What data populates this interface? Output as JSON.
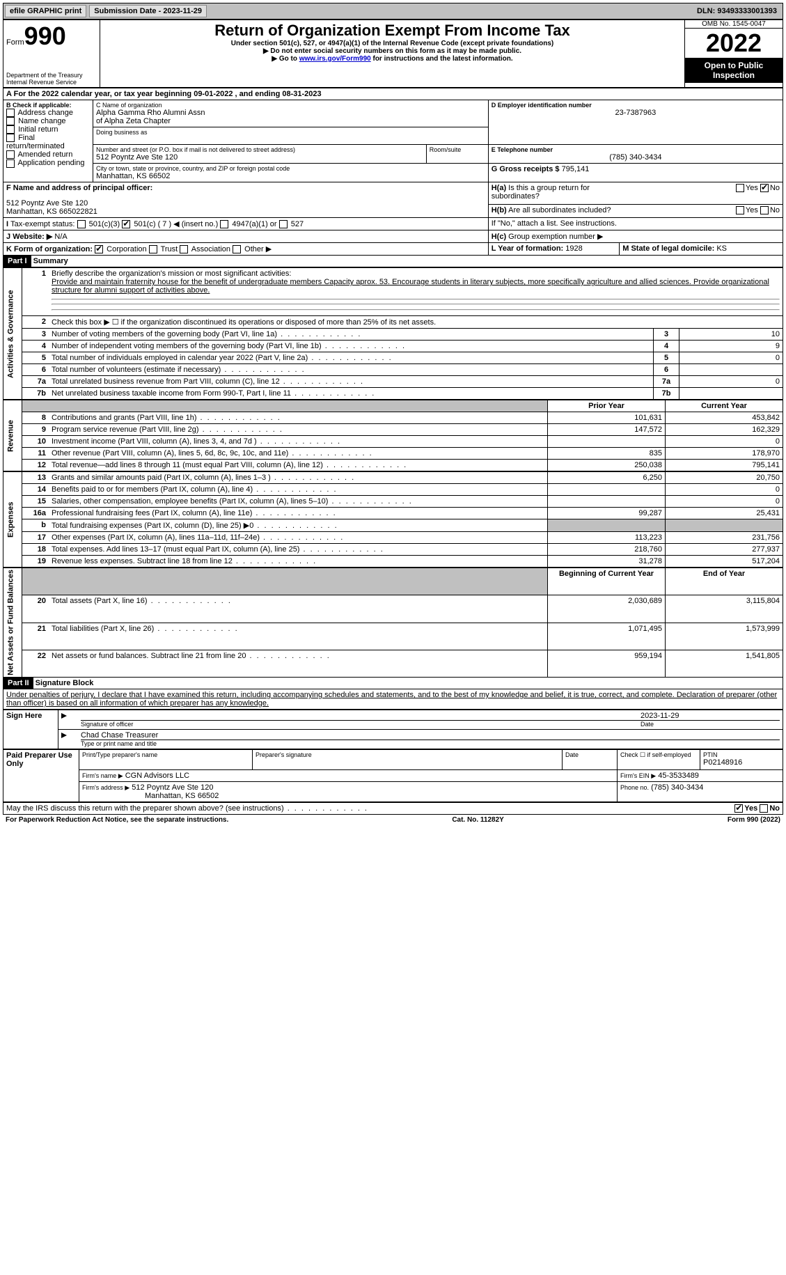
{
  "top": {
    "efile": "efile GRAPHIC print",
    "submission": "Submission Date - 2023-11-29",
    "dln": "DLN: 93493333001393"
  },
  "header": {
    "form_word": "Form",
    "form_num": "990",
    "dept": "Department of the Treasury",
    "irs": "Internal Revenue Service",
    "title": "Return of Organization Exempt From Income Tax",
    "subtitle": "Under section 501(c), 527, or 4947(a)(1) of the Internal Revenue Code (except private foundations)",
    "note1": "▶ Do not enter social security numbers on this form as it may be made public.",
    "note2_pre": "▶ Go to ",
    "note2_link": "www.irs.gov/Form990",
    "note2_post": " for instructions and the latest information.",
    "omb": "OMB No. 1545-0047",
    "year": "2022",
    "inspection": "Open to Public Inspection"
  },
  "lineA": "For the 2022 calendar year, or tax year beginning 09-01-2022    , and ending 08-31-2023",
  "boxB": {
    "label": "B Check if applicable:",
    "items": [
      "Address change",
      "Name change",
      "Initial return",
      "Final return/terminated",
      "Amended return",
      "Application pending"
    ]
  },
  "boxC": {
    "label_name": "C Name of organization",
    "name1": "Alpha Gamma Rho Alumni Assn",
    "name2": "of Alpha Zeta Chapter",
    "dba_label": "Doing business as",
    "addr_label": "Number and street (or P.O. box if mail is not delivered to street address)",
    "room_label": "Room/suite",
    "addr": "512 Poyntz Ave Ste 120",
    "city_label": "City or town, state or province, country, and ZIP or foreign postal code",
    "city": "Manhattan, KS  66502"
  },
  "boxD": {
    "label": "D Employer identification number",
    "value": "23-7387963"
  },
  "boxE": {
    "label": "E Telephone number",
    "value": "(785) 340-3434"
  },
  "boxG": {
    "label": "G Gross receipts $",
    "value": "795,141"
  },
  "boxF": {
    "label": "F  Name and address of principal officer:",
    "line1": "512 Poyntz Ave Ste 120",
    "line2": "Manhattan, KS  665022821"
  },
  "boxH": {
    "a": "Is this a group return for subordinates?",
    "b": "Are all subordinates included?",
    "note": "If \"No,\" attach a list. See instructions.",
    "c": "Group exemption number ▶"
  },
  "boxI": {
    "label": "Tax-exempt status:",
    "opts": [
      "501(c)(3)",
      "501(c) ( 7 ) ◀ (insert no.)",
      "4947(a)(1) or",
      "527"
    ]
  },
  "boxJ": {
    "label": "Website: ▶",
    "value": "N/A"
  },
  "boxK": {
    "label": "K Form of organization:",
    "opts": [
      "Corporation",
      "Trust",
      "Association",
      "Other ▶"
    ]
  },
  "boxL": {
    "label": "L Year of formation:",
    "value": "1928"
  },
  "boxM": {
    "label": "M State of legal domicile:",
    "value": "KS"
  },
  "part1": {
    "header": "Part I",
    "title": "Summary",
    "l1_label": "Briefly describe the organization's mission or most significant activities:",
    "l1_text": "Provide and maintain fraternity house for the benefit of undergraduate members Capacity aprox. 53. Encourage students in literary subjects, more specifically agriculture and allied sciences. Provide organizational structure for alumni support of activities above.",
    "l2": "Check this box ▶ ☐ if the organization discontinued its operations or disposed of more than 25% of its net assets.",
    "side_ag": "Activities & Governance",
    "side_rev": "Revenue",
    "side_exp": "Expenses",
    "side_net": "Net Assets or Fund Balances",
    "rows_gov": [
      {
        "n": "3",
        "t": "Number of voting members of the governing body (Part VI, line 1a)",
        "v": "10"
      },
      {
        "n": "4",
        "t": "Number of independent voting members of the governing body (Part VI, line 1b)",
        "v": "9"
      },
      {
        "n": "5",
        "t": "Total number of individuals employed in calendar year 2022 (Part V, line 2a)",
        "v": "0"
      },
      {
        "n": "6",
        "t": "Total number of volunteers (estimate if necessary)",
        "v": ""
      },
      {
        "n": "7a",
        "t": "Total unrelated business revenue from Part VIII, column (C), line 12",
        "v": "0"
      },
      {
        "n": "7b",
        "t": "Net unrelated business taxable income from Form 990-T, Part I, line 11",
        "v": ""
      }
    ],
    "col_prior": "Prior Year",
    "col_current": "Current Year",
    "rows_rev": [
      {
        "n": "8",
        "t": "Contributions and grants (Part VIII, line 1h)",
        "p": "101,631",
        "c": "453,842"
      },
      {
        "n": "9",
        "t": "Program service revenue (Part VIII, line 2g)",
        "p": "147,572",
        "c": "162,329"
      },
      {
        "n": "10",
        "t": "Investment income (Part VIII, column (A), lines 3, 4, and 7d )",
        "p": "",
        "c": "0"
      },
      {
        "n": "11",
        "t": "Other revenue (Part VIII, column (A), lines 5, 6d, 8c, 9c, 10c, and 11e)",
        "p": "835",
        "c": "178,970"
      },
      {
        "n": "12",
        "t": "Total revenue—add lines 8 through 11 (must equal Part VIII, column (A), line 12)",
        "p": "250,038",
        "c": "795,141"
      }
    ],
    "rows_exp": [
      {
        "n": "13",
        "t": "Grants and similar amounts paid (Part IX, column (A), lines 1–3 )",
        "p": "6,250",
        "c": "20,750"
      },
      {
        "n": "14",
        "t": "Benefits paid to or for members (Part IX, column (A), line 4)",
        "p": "",
        "c": "0"
      },
      {
        "n": "15",
        "t": "Salaries, other compensation, employee benefits (Part IX, column (A), lines 5–10)",
        "p": "",
        "c": "0"
      },
      {
        "n": "16a",
        "t": "Professional fundraising fees (Part IX, column (A), line 11e)",
        "p": "99,287",
        "c": "25,431"
      },
      {
        "n": "b",
        "t": "Total fundraising expenses (Part IX, column (D), line 25) ▶0",
        "p": "GREY",
        "c": "GREY"
      },
      {
        "n": "17",
        "t": "Other expenses (Part IX, column (A), lines 11a–11d, 11f–24e)",
        "p": "113,223",
        "c": "231,756"
      },
      {
        "n": "18",
        "t": "Total expenses. Add lines 13–17 (must equal Part IX, column (A), line 25)",
        "p": "218,760",
        "c": "277,937"
      },
      {
        "n": "19",
        "t": "Revenue less expenses. Subtract line 18 from line 12",
        "p": "31,278",
        "c": "517,204"
      }
    ],
    "col_begin": "Beginning of Current Year",
    "col_end": "End of Year",
    "rows_net": [
      {
        "n": "20",
        "t": "Total assets (Part X, line 16)",
        "p": "2,030,689",
        "c": "3,115,804"
      },
      {
        "n": "21",
        "t": "Total liabilities (Part X, line 26)",
        "p": "1,071,495",
        "c": "1,573,999"
      },
      {
        "n": "22",
        "t": "Net assets or fund balances. Subtract line 21 from line 20",
        "p": "959,194",
        "c": "1,541,805"
      }
    ]
  },
  "part2": {
    "header": "Part II",
    "title": "Signature Block",
    "decl": "Under penalties of perjury, I declare that I have examined this return, including accompanying schedules and statements, and to the best of my knowledge and belief, it is true, correct, and complete. Declaration of preparer (other than officer) is based on all information of which preparer has any knowledge.",
    "sign_here": "Sign Here",
    "sig_officer": "Signature of officer",
    "sig_date": "2023-11-29",
    "sig_name": "Chad Chase  Treasurer",
    "sig_name_label": "Type or print name and title",
    "paid": "Paid Preparer Use Only",
    "prep_name_label": "Print/Type preparer's name",
    "prep_sig_label": "Preparer's signature",
    "date_label": "Date",
    "check_self": "Check ☐ if self-employed",
    "ptin_label": "PTIN",
    "ptin": "P02148916",
    "firm_name_label": "Firm's name    ▶",
    "firm_name": "CGN Advisors LLC",
    "firm_ein_label": "Firm's EIN ▶",
    "firm_ein": "45-3533489",
    "firm_addr_label": "Firm's address ▶",
    "firm_addr1": "512 Poyntz Ave Ste 120",
    "firm_addr2": "Manhattan, KS  66502",
    "phone_label": "Phone no.",
    "phone": "(785) 340-3434",
    "discuss": "May the IRS discuss this return with the preparer shown above? (see instructions)",
    "yes": "Yes",
    "no": "No"
  },
  "footer": {
    "left": "For Paperwork Reduction Act Notice, see the separate instructions.",
    "mid": "Cat. No. 11282Y",
    "right": "Form 990 (2022)"
  }
}
